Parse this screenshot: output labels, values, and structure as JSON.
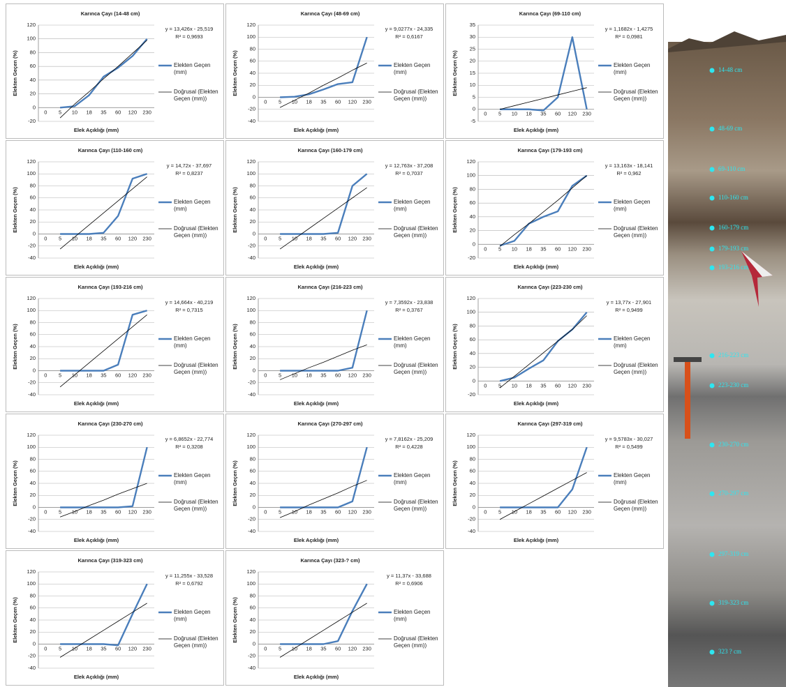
{
  "charts": [
    {
      "type": "line",
      "title": "Karınca Çayı (14-48 cm)",
      "categories": [
        "0",
        "5",
        "10",
        "18",
        "35",
        "60",
        "120",
        "230"
      ],
      "series": [
        {
          "name": "Elekten Geçen (mm)",
          "color": "#4a7ebb",
          "values": [
            null,
            0,
            2,
            18,
            45,
            58,
            75,
            100
          ]
        },
        {
          "name": "Doğrusal (Elekten Geçen (mm))",
          "color": "#000000",
          "values": [
            null,
            -15,
            5,
            23,
            42,
            60,
            79,
            98
          ]
        }
      ],
      "ylim": [
        -20,
        120
      ],
      "yticks": [
        -20,
        0,
        20,
        40,
        60,
        80,
        100,
        120
      ],
      "y_label": "Elekten Geçen (%)",
      "x_label": "Elek Açıklığı (mm)",
      "equation": "y = 13,426x - 25,519",
      "r_squared": "R² = 0,9693",
      "grid": true
    },
    {
      "type": "line",
      "title": "Karınca Çayı (48-69 cm)",
      "categories": [
        "0",
        "5",
        "10",
        "18",
        "35",
        "60",
        "120",
        "230"
      ],
      "series": [
        {
          "name": "Elekten Geçen (mm)",
          "color": "#4a7ebb",
          "values": [
            null,
            0,
            1,
            5,
            13,
            22,
            25,
            100
          ]
        },
        {
          "name": "Doğrusal (Elekten Geçen (mm))",
          "color": "#000000",
          "values": [
            null,
            -17,
            -5,
            7,
            20,
            32,
            45,
            57
          ]
        }
      ],
      "ylim": [
        -40,
        120
      ],
      "yticks": [
        -40,
        -20,
        0,
        20,
        40,
        60,
        80,
        100,
        120
      ],
      "y_label": "Elekten Geçen (%)",
      "x_label": "Elek Açıklığı (mm)",
      "equation": "y = 9,0277x - 24,335",
      "r_squared": "R² = 0,6167",
      "grid": true
    },
    {
      "type": "line",
      "title": "Karınca Çayı (69-110 cm)",
      "categories": [
        "0",
        "5",
        "10",
        "18",
        "35",
        "60",
        "120",
        "230"
      ],
      "series": [
        {
          "name": "Elekten Geçen (mm)",
          "color": "#4a7ebb",
          "values": [
            null,
            0,
            0,
            0,
            -0.5,
            5,
            30,
            0
          ]
        },
        {
          "name": "Doğrusal (Elekten Geçen (mm))",
          "color": "#000000",
          "values": [
            null,
            0,
            1.5,
            3,
            4.5,
            6,
            7.5,
            9
          ]
        }
      ],
      "ylim": [
        -5,
        35
      ],
      "yticks": [
        -5,
        0,
        5,
        10,
        15,
        20,
        25,
        30,
        35
      ],
      "y_label": "Elekten Geçen (%)",
      "x_label": "Elek Açıklığı (mm)",
      "equation": "y = 1,1682x - 1,4275",
      "r_squared": "R² = 0,0981",
      "grid": true
    },
    {
      "type": "line",
      "title": "Karınca Çayı (110-160 cm)",
      "categories": [
        "0",
        "5",
        "10",
        "18",
        "35",
        "60",
        "120",
        "230"
      ],
      "series": [
        {
          "name": "Elekten Geçen (mm)",
          "color": "#4a7ebb",
          "values": [
            null,
            0,
            0,
            0,
            2,
            30,
            92,
            100
          ]
        },
        {
          "name": "Doğrusal (Elekten Geçen (mm))",
          "color": "#000000",
          "values": [
            null,
            -25,
            -5,
            15,
            35,
            55,
            75,
            95
          ]
        }
      ],
      "ylim": [
        -40,
        120
      ],
      "yticks": [
        -40,
        -20,
        0,
        20,
        40,
        60,
        80,
        100,
        120
      ],
      "y_label": "Elekten Geçen (%)",
      "x_label": "Elek Açıklığı (mm)",
      "equation": "y = 14,72x - 37,697",
      "r_squared": "R² = 0,8237",
      "grid": true
    },
    {
      "type": "line",
      "title": "Karınca Çayı (160-179 cm)",
      "categories": [
        "0",
        "5",
        "10",
        "18",
        "35",
        "60",
        "120",
        "230"
      ],
      "series": [
        {
          "name": "Elekten Geçen (mm)",
          "color": "#4a7ebb",
          "values": [
            null,
            0,
            0,
            0,
            0,
            2,
            80,
            100
          ]
        },
        {
          "name": "Doğrusal (Elekten Geçen (mm))",
          "color": "#000000",
          "values": [
            null,
            -25,
            -8,
            9,
            26,
            43,
            60,
            77
          ]
        }
      ],
      "ylim": [
        -40,
        120
      ],
      "yticks": [
        -40,
        -20,
        0,
        20,
        40,
        60,
        80,
        100,
        120
      ],
      "y_label": "Elekten Geçen (%)",
      "x_label": "Elek Açıklığı (mm)",
      "equation": "y = 12,763x - 37,208",
      "r_squared": "R² = 0,7037",
      "grid": true
    },
    {
      "type": "line",
      "title": "Karınca Çayı (179-193 cm)",
      "categories": [
        "0",
        "5",
        "10",
        "18",
        "35",
        "60",
        "120",
        "230"
      ],
      "series": [
        {
          "name": "Elekten Geçen (mm)",
          "color": "#4a7ebb",
          "values": [
            null,
            -2,
            5,
            30,
            40,
            48,
            85,
            100
          ]
        },
        {
          "name": "Doğrusal (Elekten Geçen (mm))",
          "color": "#000000",
          "values": [
            null,
            -3,
            14,
            30,
            47,
            64,
            82,
            100
          ]
        }
      ],
      "ylim": [
        -20,
        120
      ],
      "yticks": [
        -20,
        0,
        20,
        40,
        60,
        80,
        100,
        120
      ],
      "y_label": "Elekten Geçen (%)",
      "x_label": "Elek Açıklığı (mm)",
      "equation": "y = 13,163x - 18,141",
      "r_squared": "R² = 0,962",
      "grid": true
    },
    {
      "type": "line",
      "title": "Karınca Çayı (193-216 cm)",
      "categories": [
        "0",
        "5",
        "10",
        "18",
        "35",
        "60",
        "120",
        "230"
      ],
      "series": [
        {
          "name": "Elekten Geçen (mm)",
          "color": "#4a7ebb",
          "values": [
            null,
            0,
            0,
            0,
            0,
            10,
            93,
            100
          ]
        },
        {
          "name": "Doğrusal (Elekten Geçen (mm))",
          "color": "#000000",
          "values": [
            null,
            -27,
            -7,
            13,
            33,
            53,
            73,
            93
          ]
        }
      ],
      "ylim": [
        -40,
        120
      ],
      "yticks": [
        -40,
        -20,
        0,
        20,
        40,
        60,
        80,
        100,
        120
      ],
      "y_label": "Elekten Geçen (%)",
      "x_label": "Elek Açıklığı (mm)",
      "equation": "y = 14,664x - 40,219",
      "r_squared": "R² = 0,7315",
      "grid": true
    },
    {
      "type": "line",
      "title": "Karınca Çayı (216-223 cm)",
      "categories": [
        "0",
        "5",
        "10",
        "18",
        "35",
        "60",
        "120",
        "230"
      ],
      "series": [
        {
          "name": "Elekten Geçen (mm)",
          "color": "#4a7ebb",
          "values": [
            null,
            0,
            0,
            0,
            0,
            0,
            5,
            100
          ]
        },
        {
          "name": "Doğrusal (Elekten Geçen (mm))",
          "color": "#000000",
          "values": [
            null,
            -15,
            -5,
            5,
            14,
            24,
            34,
            43
          ]
        }
      ],
      "ylim": [
        -40,
        120
      ],
      "yticks": [
        -40,
        -20,
        0,
        20,
        40,
        60,
        80,
        100,
        120
      ],
      "y_label": "Elekten Geçen (%)",
      "x_label": "Elek Açıklığı (mm)",
      "equation": "y = 7,3592x - 23,838",
      "r_squared": "R² = 0,3767",
      "grid": true
    },
    {
      "type": "line",
      "title": "Karınca Çayı (223-230 cm)",
      "categories": [
        "0",
        "5",
        "10",
        "18",
        "35",
        "60",
        "120",
        "230"
      ],
      "series": [
        {
          "name": "Elekten Geçen (mm)",
          "color": "#4a7ebb",
          "values": [
            null,
            0,
            5,
            18,
            30,
            58,
            75,
            100
          ]
        },
        {
          "name": "Doğrusal (Elekten Geçen (mm))",
          "color": "#000000",
          "values": [
            null,
            -10,
            7,
            24,
            41,
            58,
            75,
            95
          ]
        }
      ],
      "ylim": [
        -20,
        120
      ],
      "yticks": [
        -20,
        0,
        20,
        40,
        60,
        80,
        100,
        120
      ],
      "y_label": "Elekten Geçen (%)",
      "x_label": "Elek Açıklığı (mm)",
      "equation": "y = 13,77x - 27,901",
      "r_squared": "R² = 0,9499",
      "grid": true
    },
    {
      "type": "line",
      "title": "Karınca Çayı (230-270 cm)",
      "categories": [
        "0",
        "5",
        "10",
        "18",
        "35",
        "60",
        "120",
        "230"
      ],
      "series": [
        {
          "name": "Elekten Geçen (mm)",
          "color": "#4a7ebb",
          "values": [
            null,
            0,
            0,
            0,
            0,
            0,
            2,
            100
          ]
        },
        {
          "name": "Doğrusal (Elekten Geçen (mm))",
          "color": "#000000",
          "values": [
            null,
            -16,
            -7,
            3,
            12,
            22,
            31,
            40
          ]
        }
      ],
      "ylim": [
        -40,
        120
      ],
      "yticks": [
        -40,
        -20,
        0,
        20,
        40,
        60,
        80,
        100,
        120
      ],
      "y_label": "Elekten Geçen (%)",
      "x_label": "Elek Açıklığı (mm)",
      "equation": "y = 6,8652x - 22,774",
      "r_squared": "R² = 0,3208",
      "grid": true
    },
    {
      "type": "line",
      "title": "Karınca Çayı (270-297 cm)",
      "categories": [
        "0",
        "5",
        "10",
        "18",
        "35",
        "60",
        "120",
        "230"
      ],
      "series": [
        {
          "name": "Elekten Geçen (mm)",
          "color": "#4a7ebb",
          "values": [
            null,
            0,
            0,
            0,
            0,
            0,
            10,
            100
          ]
        },
        {
          "name": "Doğrusal (Elekten Geçen (mm))",
          "color": "#000000",
          "values": [
            null,
            -17,
            -7,
            4,
            14,
            24,
            35,
            45
          ]
        }
      ],
      "ylim": [
        -40,
        120
      ],
      "yticks": [
        -40,
        -20,
        0,
        20,
        40,
        60,
        80,
        100,
        120
      ],
      "y_label": "Elekten Geçen (%)",
      "x_label": "Elek Açıklığı (mm)",
      "equation": "y = 7,8162x - 25,209",
      "r_squared": "R² = 0,4228",
      "grid": true
    },
    {
      "type": "line",
      "title": "Karınca Çayı (297-319 cm)",
      "categories": [
        "0",
        "5",
        "10",
        "18",
        "35",
        "60",
        "120",
        "230"
      ],
      "series": [
        {
          "name": "Elekten Geçen (mm)",
          "color": "#4a7ebb",
          "values": [
            null,
            0,
            0,
            0,
            0,
            0,
            30,
            100
          ]
        },
        {
          "name": "Doğrusal (Elekten Geçen (mm))",
          "color": "#000000",
          "values": [
            null,
            -20,
            -7,
            6,
            19,
            32,
            45,
            58
          ]
        }
      ],
      "ylim": [
        -40,
        120
      ],
      "yticks": [
        -40,
        -20,
        0,
        20,
        40,
        60,
        80,
        100,
        120
      ],
      "y_label": "Elekten Geçen (%)",
      "x_label": "Elek Açıklığı (mm)",
      "equation": "y = 9,5783x - 30,027",
      "r_squared": "R² = 0,5499",
      "grid": true
    },
    {
      "type": "line",
      "title": "Karınca Çayı (319-323 cm)",
      "categories": [
        "0",
        "5",
        "10",
        "18",
        "35",
        "60",
        "120",
        "230"
      ],
      "series": [
        {
          "name": "Elekten Geçen (mm)",
          "color": "#4a7ebb",
          "values": [
            null,
            0,
            0,
            0,
            0,
            -2,
            50,
            100
          ]
        },
        {
          "name": "Doğrusal (Elekten Geçen (mm))",
          "color": "#000000",
          "values": [
            null,
            -22,
            -7,
            8,
            23,
            38,
            53,
            68
          ]
        }
      ],
      "ylim": [
        -40,
        120
      ],
      "yticks": [
        -40,
        -20,
        0,
        20,
        40,
        60,
        80,
        100,
        120
      ],
      "y_label": "Elekten Geçen (%)",
      "x_label": "Elek Açıklığı (mm)",
      "equation": "y = 11,255x - 33,528",
      "r_squared": "R² = 0,6792",
      "grid": true
    },
    {
      "type": "line",
      "title": "Karınca Çayı (323-? cm)",
      "categories": [
        "0",
        "5",
        "10",
        "18",
        "35",
        "60",
        "120",
        "230"
      ],
      "series": [
        {
          "name": "Elekten Geçen (mm)",
          "color": "#4a7ebb",
          "values": [
            null,
            0,
            0,
            0,
            0,
            5,
            55,
            100
          ]
        },
        {
          "name": "Doğrusal (Elekten Geçen (mm))",
          "color": "#000000",
          "values": [
            null,
            -22,
            -7,
            8,
            23,
            38,
            53,
            68
          ]
        }
      ],
      "ylim": [
        -40,
        120
      ],
      "yticks": [
        -40,
        -20,
        0,
        20,
        40,
        60,
        80,
        100,
        120
      ],
      "y_label": "Elekten Geçen (%)",
      "x_label": "Elek Açıklığı (mm)",
      "equation": "y = 11,37x - 33,688",
      "r_squared": "R² = 0,6906",
      "grid": true
    }
  ],
  "photo": {
    "labels": [
      "14-48 cm",
      "48-69 cm",
      "69-110 cm",
      "110-160 cm",
      "160-179 cm",
      "179-193 cm",
      "193-216 cm",
      "216-223 cm",
      "223-230 cm",
      "230-270 cm",
      "270-297 cm",
      "297-319 cm",
      "319-323 cm",
      "323 ? cm"
    ]
  }
}
